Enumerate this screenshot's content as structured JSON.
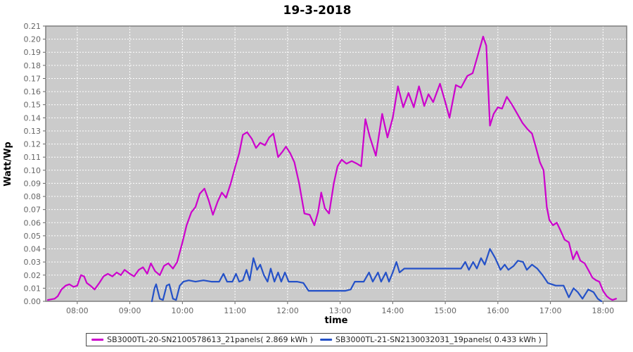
{
  "title": "19-3-2018",
  "chart_data": {
    "type": "line",
    "title": "19-3-2018",
    "xlabel": "time",
    "ylabel": "Watt/Wp",
    "x_ticks": [
      "08:00",
      "09:00",
      "10:00",
      "11:00",
      "12:00",
      "13:00",
      "14:00",
      "15:00",
      "16:00",
      "17:00",
      "18:00"
    ],
    "x_tick_hours": [
      8,
      9,
      10,
      11,
      12,
      13,
      14,
      15,
      16,
      17,
      18
    ],
    "xlim_hours": [
      7.4,
      18.45
    ],
    "ylim": [
      0,
      0.21
    ],
    "y_tick_step": 0.01,
    "grid": "white dashed gridlines at every hour and every 0.01",
    "legend_position": "bottom",
    "colors": {
      "plot_bg": "#CBCBCB",
      "grid": "#FFFFFF",
      "plot_border": "#7F7F7F",
      "tick_label": "#666666",
      "series1": "#CC00CC",
      "series2": "#2451C8"
    },
    "series": [
      {
        "name": "SB3000TL-20-SN2100578613_21panels( 2.869 kWh )",
        "color": "#CC00CC",
        "energy_kwh": 2.869,
        "points": [
          [
            7.44,
            0.001
          ],
          [
            7.57,
            0.002
          ],
          [
            7.63,
            0.004
          ],
          [
            7.7,
            0.009
          ],
          [
            7.78,
            0.012
          ],
          [
            7.85,
            0.013
          ],
          [
            7.93,
            0.011
          ],
          [
            8.0,
            0.012
          ],
          [
            8.07,
            0.02
          ],
          [
            8.13,
            0.019
          ],
          [
            8.18,
            0.014
          ],
          [
            8.25,
            0.012
          ],
          [
            8.33,
            0.009
          ],
          [
            8.42,
            0.014
          ],
          [
            8.5,
            0.019
          ],
          [
            8.58,
            0.021
          ],
          [
            8.67,
            0.019
          ],
          [
            8.75,
            0.022
          ],
          [
            8.83,
            0.02
          ],
          [
            8.9,
            0.024
          ],
          [
            9.0,
            0.021
          ],
          [
            9.08,
            0.019
          ],
          [
            9.17,
            0.024
          ],
          [
            9.25,
            0.026
          ],
          [
            9.33,
            0.021
          ],
          [
            9.4,
            0.029
          ],
          [
            9.48,
            0.023
          ],
          [
            9.57,
            0.02
          ],
          [
            9.65,
            0.027
          ],
          [
            9.73,
            0.029
          ],
          [
            9.82,
            0.025
          ],
          [
            9.9,
            0.03
          ],
          [
            10.0,
            0.045
          ],
          [
            10.08,
            0.058
          ],
          [
            10.17,
            0.068
          ],
          [
            10.25,
            0.072
          ],
          [
            10.33,
            0.082
          ],
          [
            10.42,
            0.086
          ],
          [
            10.5,
            0.077
          ],
          [
            10.58,
            0.066
          ],
          [
            10.67,
            0.076
          ],
          [
            10.75,
            0.083
          ],
          [
            10.83,
            0.079
          ],
          [
            10.92,
            0.09
          ],
          [
            11.0,
            0.102
          ],
          [
            11.08,
            0.113
          ],
          [
            11.15,
            0.127
          ],
          [
            11.23,
            0.129
          ],
          [
            11.32,
            0.124
          ],
          [
            11.4,
            0.117
          ],
          [
            11.48,
            0.121
          ],
          [
            11.57,
            0.119
          ],
          [
            11.65,
            0.125
          ],
          [
            11.73,
            0.128
          ],
          [
            11.82,
            0.11
          ],
          [
            11.9,
            0.114
          ],
          [
            11.97,
            0.118
          ],
          [
            12.05,
            0.113
          ],
          [
            12.13,
            0.106
          ],
          [
            12.22,
            0.09
          ],
          [
            12.32,
            0.067
          ],
          [
            12.42,
            0.066
          ],
          [
            12.51,
            0.058
          ],
          [
            12.58,
            0.068
          ],
          [
            12.64,
            0.083
          ],
          [
            12.71,
            0.071
          ],
          [
            12.79,
            0.067
          ],
          [
            12.88,
            0.09
          ],
          [
            12.95,
            0.103
          ],
          [
            13.03,
            0.108
          ],
          [
            13.12,
            0.105
          ],
          [
            13.22,
            0.107
          ],
          [
            13.32,
            0.105
          ],
          [
            13.4,
            0.103
          ],
          [
            13.48,
            0.139
          ],
          [
            13.56,
            0.126
          ],
          [
            13.68,
            0.111
          ],
          [
            13.8,
            0.143
          ],
          [
            13.9,
            0.125
          ],
          [
            14.0,
            0.14
          ],
          [
            14.1,
            0.164
          ],
          [
            14.2,
            0.148
          ],
          [
            14.3,
            0.159
          ],
          [
            14.4,
            0.148
          ],
          [
            14.5,
            0.164
          ],
          [
            14.6,
            0.149
          ],
          [
            14.68,
            0.158
          ],
          [
            14.77,
            0.152
          ],
          [
            14.9,
            0.166
          ],
          [
            15.0,
            0.152
          ],
          [
            15.08,
            0.14
          ],
          [
            15.2,
            0.165
          ],
          [
            15.3,
            0.163
          ],
          [
            15.42,
            0.172
          ],
          [
            15.52,
            0.174
          ],
          [
            15.62,
            0.188
          ],
          [
            15.72,
            0.202
          ],
          [
            15.78,
            0.195
          ],
          [
            15.85,
            0.134
          ],
          [
            15.92,
            0.143
          ],
          [
            16.0,
            0.148
          ],
          [
            16.08,
            0.147
          ],
          [
            16.17,
            0.156
          ],
          [
            16.27,
            0.15
          ],
          [
            16.37,
            0.143
          ],
          [
            16.47,
            0.136
          ],
          [
            16.57,
            0.131
          ],
          [
            16.65,
            0.128
          ],
          [
            16.72,
            0.118
          ],
          [
            16.8,
            0.106
          ],
          [
            16.87,
            0.1
          ],
          [
            16.93,
            0.072
          ],
          [
            16.98,
            0.062
          ],
          [
            17.05,
            0.058
          ],
          [
            17.12,
            0.06
          ],
          [
            17.18,
            0.055
          ],
          [
            17.27,
            0.047
          ],
          [
            17.35,
            0.045
          ],
          [
            17.43,
            0.032
          ],
          [
            17.5,
            0.038
          ],
          [
            17.57,
            0.031
          ],
          [
            17.65,
            0.029
          ],
          [
            17.72,
            0.024
          ],
          [
            17.8,
            0.018
          ],
          [
            17.87,
            0.016
          ],
          [
            17.93,
            0.015
          ],
          [
            18.0,
            0.008
          ],
          [
            18.07,
            0.004
          ],
          [
            18.13,
            0.002
          ],
          [
            18.18,
            0.001
          ],
          [
            18.25,
            0.002
          ]
        ]
      },
      {
        "name": "SB3000TL-21-SN2130032031_19panels( 0.433 kWh )",
        "color": "#2451C8",
        "energy_kwh": 0.433,
        "points": [
          [
            9.42,
            0.0
          ],
          [
            9.47,
            0.01
          ],
          [
            9.5,
            0.013
          ],
          [
            9.57,
            0.002
          ],
          [
            9.63,
            0.001
          ],
          [
            9.7,
            0.012
          ],
          [
            9.75,
            0.013
          ],
          [
            9.82,
            0.002
          ],
          [
            9.88,
            0.001
          ],
          [
            9.95,
            0.012
          ],
          [
            10.02,
            0.015
          ],
          [
            10.12,
            0.016
          ],
          [
            10.25,
            0.015
          ],
          [
            10.4,
            0.016
          ],
          [
            10.55,
            0.015
          ],
          [
            10.7,
            0.015
          ],
          [
            10.78,
            0.021
          ],
          [
            10.85,
            0.015
          ],
          [
            10.95,
            0.015
          ],
          [
            11.02,
            0.021
          ],
          [
            11.08,
            0.015
          ],
          [
            11.15,
            0.016
          ],
          [
            11.22,
            0.024
          ],
          [
            11.28,
            0.016
          ],
          [
            11.35,
            0.033
          ],
          [
            11.42,
            0.024
          ],
          [
            11.48,
            0.028
          ],
          [
            11.55,
            0.02
          ],
          [
            11.62,
            0.015
          ],
          [
            11.68,
            0.025
          ],
          [
            11.75,
            0.015
          ],
          [
            11.82,
            0.022
          ],
          [
            11.88,
            0.015
          ],
          [
            11.95,
            0.022
          ],
          [
            12.02,
            0.015
          ],
          [
            12.18,
            0.015
          ],
          [
            12.3,
            0.014
          ],
          [
            12.4,
            0.008
          ],
          [
            12.6,
            0.008
          ],
          [
            12.85,
            0.008
          ],
          [
            13.1,
            0.008
          ],
          [
            13.2,
            0.009
          ],
          [
            13.28,
            0.015
          ],
          [
            13.45,
            0.015
          ],
          [
            13.55,
            0.022
          ],
          [
            13.62,
            0.015
          ],
          [
            13.72,
            0.022
          ],
          [
            13.78,
            0.015
          ],
          [
            13.87,
            0.022
          ],
          [
            13.93,
            0.015
          ],
          [
            14.0,
            0.022
          ],
          [
            14.07,
            0.03
          ],
          [
            14.13,
            0.022
          ],
          [
            14.22,
            0.025
          ],
          [
            14.45,
            0.025
          ],
          [
            14.75,
            0.025
          ],
          [
            15.05,
            0.025
          ],
          [
            15.3,
            0.025
          ],
          [
            15.38,
            0.03
          ],
          [
            15.45,
            0.024
          ],
          [
            15.53,
            0.03
          ],
          [
            15.6,
            0.025
          ],
          [
            15.68,
            0.033
          ],
          [
            15.75,
            0.028
          ],
          [
            15.85,
            0.04
          ],
          [
            15.95,
            0.033
          ],
          [
            16.05,
            0.024
          ],
          [
            16.13,
            0.028
          ],
          [
            16.2,
            0.024
          ],
          [
            16.3,
            0.027
          ],
          [
            16.38,
            0.031
          ],
          [
            16.48,
            0.03
          ],
          [
            16.55,
            0.024
          ],
          [
            16.65,
            0.028
          ],
          [
            16.75,
            0.025
          ],
          [
            16.85,
            0.02
          ],
          [
            16.95,
            0.014
          ],
          [
            17.1,
            0.012
          ],
          [
            17.25,
            0.012
          ],
          [
            17.35,
            0.003
          ],
          [
            17.44,
            0.01
          ],
          [
            17.52,
            0.007
          ],
          [
            17.61,
            0.002
          ],
          [
            17.72,
            0.009
          ],
          [
            17.82,
            0.007
          ],
          [
            17.9,
            0.002
          ],
          [
            17.97,
            0.0
          ]
        ]
      }
    ]
  }
}
